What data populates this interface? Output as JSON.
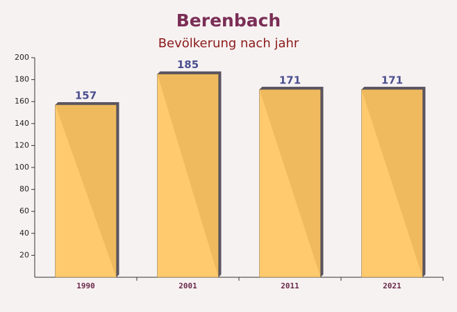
{
  "chart_data": {
    "type": "bar",
    "title": "Berenbach",
    "subtitle": "Bevölkerung nach jahr",
    "categories": [
      "1990",
      "2001",
      "2011",
      "2021"
    ],
    "values": [
      157,
      185,
      171,
      171
    ],
    "color": "#ffc55e",
    "ylim": [
      0,
      200
    ],
    "yticks": [
      20,
      40,
      60,
      80,
      100,
      120,
      140,
      160,
      180,
      200
    ]
  }
}
